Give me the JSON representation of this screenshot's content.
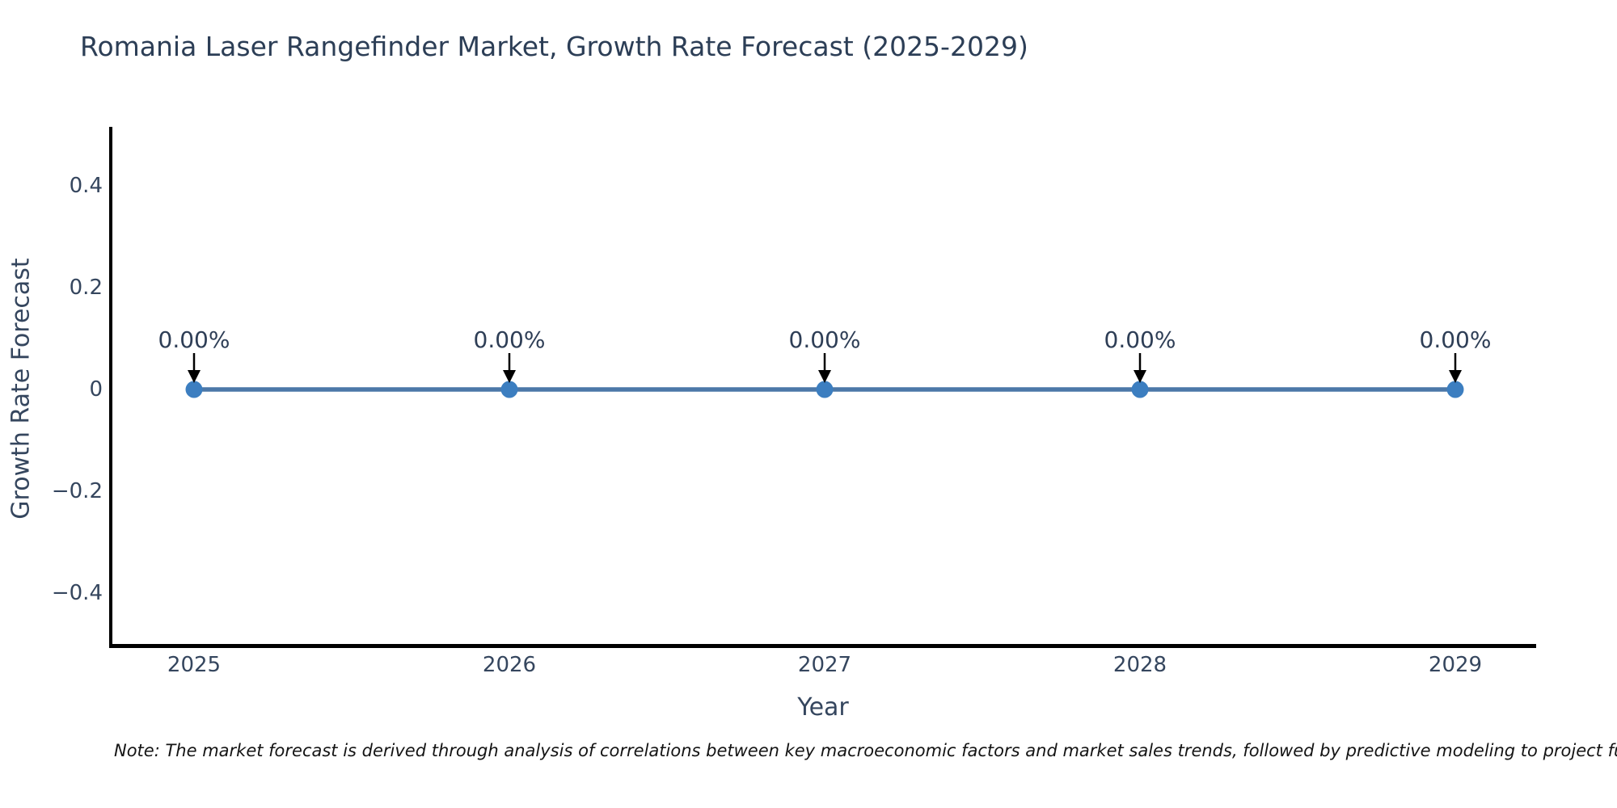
{
  "chart_data": {
    "type": "line",
    "title": "Romania Laser Rangefinder Market, Growth Rate Forecast (2025-2029)",
    "xlabel": "Year",
    "ylabel": "Growth Rate Forecast",
    "x": [
      2025,
      2026,
      2027,
      2028,
      2029
    ],
    "x_tick_labels": [
      "2025",
      "2026",
      "2027",
      "2028",
      "2029"
    ],
    "values": [
      0,
      0,
      0,
      0,
      0
    ],
    "point_labels": [
      "0.00%",
      "0.00%",
      "0.00%",
      "0.00%",
      "0.00%"
    ],
    "ylim": [
      -0.5,
      0.5
    ],
    "yticks": [
      0.4,
      0.2,
      0,
      -0.2,
      -0.4
    ],
    "ytick_labels": [
      "0.4",
      "0.2",
      "0",
      "−0.2",
      "−0.4"
    ],
    "grid": false,
    "legend": false,
    "colors": {
      "line": "#4c78a8",
      "marker": "#3c7ec0",
      "arrow": "#000000",
      "axis": "#000000",
      "title_text": "#2c3e56",
      "tick_text": "#35465e"
    },
    "note": "Note: The market forecast is derived through analysis of correlations between key macroeconomic factors and market sales trends, followed by predictive modeling to project future sales."
  }
}
